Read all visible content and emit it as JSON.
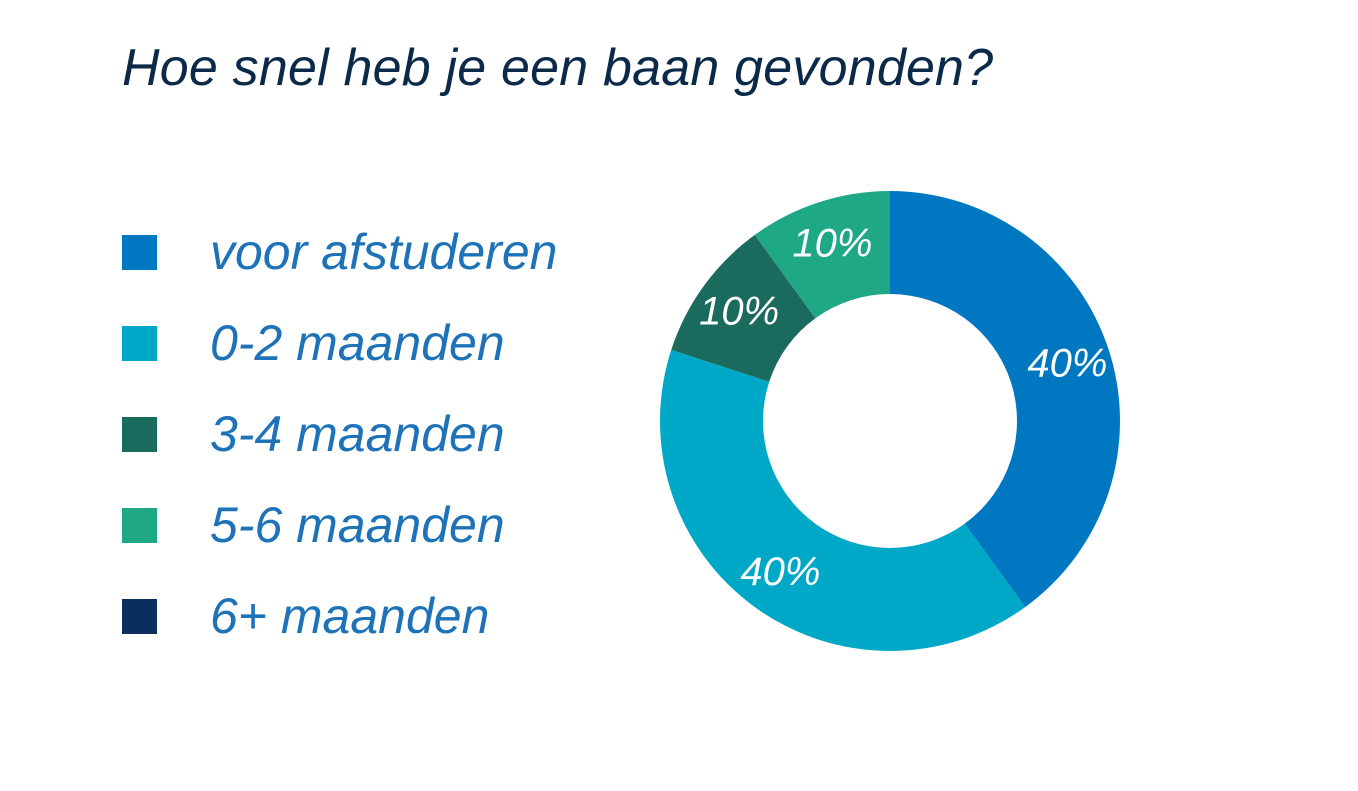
{
  "title": "Hoe snel heb je een baan gevonden?",
  "chart_data": {
    "type": "pie",
    "variant": "donut",
    "title": "Hoe snel heb je een baan gevonden?",
    "categories": [
      "voor afstuderen",
      "0-2 maanden",
      "3-4 maanden",
      "5-6 maanden",
      "6+ maanden"
    ],
    "values": [
      40,
      40,
      10,
      10,
      0
    ],
    "unit": "%",
    "data_labels": [
      "40%",
      "40%",
      "10%",
      "10%",
      ""
    ],
    "colors": [
      "#0078c1",
      "#00a8c8",
      "#1a6a5e",
      "#1ea885",
      "#0a2f5f"
    ],
    "legend_position": "left"
  }
}
